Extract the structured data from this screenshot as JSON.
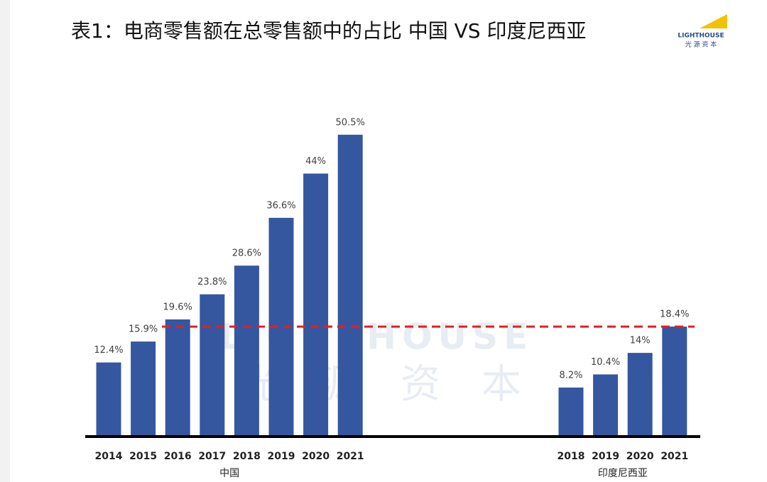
{
  "chart_data": {
    "type": "bar",
    "title": "表1：电商零售额在总零售额中的占比 中国 VS 印度尼西亚",
    "color": "#3557a0",
    "groups": [
      {
        "name": "中国",
        "categories": [
          "2014",
          "2015",
          "2016",
          "2017",
          "2018",
          "2019",
          "2020",
          "2021"
        ],
        "values": [
          12.4,
          15.9,
          19.6,
          23.8,
          28.6,
          36.6,
          44,
          50.5
        ],
        "value_labels": [
          "12.4%",
          "15.9%",
          "19.6%",
          "23.8%",
          "28.6%",
          "36.6%",
          "44%",
          "50.5%"
        ]
      },
      {
        "name": "印度尼西亚",
        "categories": [
          "2018",
          "2019",
          "2020",
          "2021"
        ],
        "values": [
          8.2,
          10.4,
          14,
          18.4
        ],
        "value_labels": [
          "8.2%",
          "10.4%",
          "14%",
          "18.4%"
        ]
      }
    ],
    "reference_line": {
      "value": 18.4,
      "color": "#e31e24",
      "style": "dashed"
    },
    "logo": {
      "name": "LIGHTHOUSE",
      "subtitle": "光 源 资 本"
    },
    "watermark": {
      "name": "LIGHTHOUSE",
      "subtitle": "光 源 资 本"
    }
  }
}
